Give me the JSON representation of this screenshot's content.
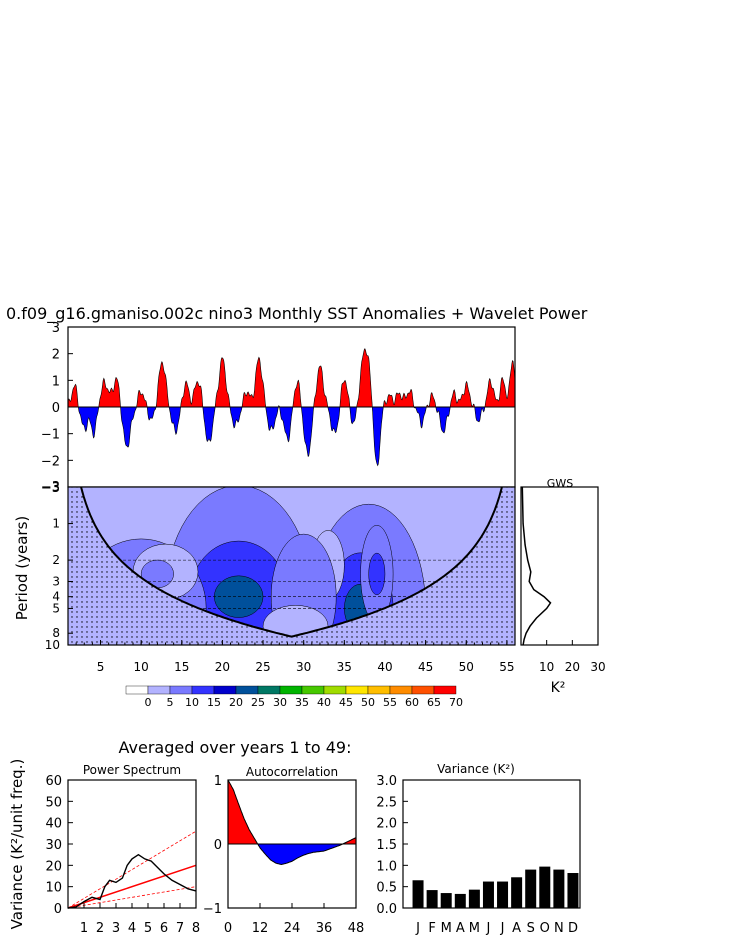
{
  "title": "0.f09_g16.gmaniso.002c nino3 Monthly SST Anomalies + Wavelet Power",
  "colors": {
    "positive": "#ff0000",
    "negative": "#0000ff",
    "coi_fill": "#8f8fe8",
    "wavelet_bg": "#b3b3ff",
    "bar": "#000000"
  },
  "chart_data": [
    {
      "id": "anomaly",
      "type": "area",
      "x_range": [
        1,
        56
      ],
      "ylim": [
        -3,
        3
      ],
      "yticks": [
        "3",
        "2",
        "1",
        "0",
        "−1",
        "−2",
        "−3"
      ],
      "peaks": [
        {
          "x": 1.8,
          "y": 0.8,
          "w": 0.5
        },
        {
          "x": 3.0,
          "y": -0.8,
          "w": 0.6
        },
        {
          "x": 4.2,
          "y": -1.0,
          "w": 0.5
        },
        {
          "x": 5.5,
          "y": 0.9,
          "w": 0.7
        },
        {
          "x": 7.0,
          "y": 1.1,
          "w": 0.6
        },
        {
          "x": 8.2,
          "y": -1.5,
          "w": 0.7
        },
        {
          "x": 10.0,
          "y": 0.6,
          "w": 0.5
        },
        {
          "x": 11.3,
          "y": -0.5,
          "w": 0.5
        },
        {
          "x": 12.6,
          "y": 1.7,
          "w": 0.6
        },
        {
          "x": 14.2,
          "y": -0.9,
          "w": 0.6
        },
        {
          "x": 15.5,
          "y": 0.9,
          "w": 0.5
        },
        {
          "x": 17.0,
          "y": 1.0,
          "w": 0.6
        },
        {
          "x": 18.3,
          "y": -1.4,
          "w": 0.6
        },
        {
          "x": 20.0,
          "y": 1.8,
          "w": 0.6
        },
        {
          "x": 21.6,
          "y": -0.7,
          "w": 0.6
        },
        {
          "x": 23.0,
          "y": 0.6,
          "w": 0.5
        },
        {
          "x": 24.5,
          "y": 1.8,
          "w": 0.6
        },
        {
          "x": 26.0,
          "y": -0.9,
          "w": 0.6
        },
        {
          "x": 28.0,
          "y": -1.2,
          "w": 0.6
        },
        {
          "x": 29.2,
          "y": 1.0,
          "w": 0.5
        },
        {
          "x": 30.5,
          "y": -1.8,
          "w": 0.6
        },
        {
          "x": 32.0,
          "y": 1.5,
          "w": 0.6
        },
        {
          "x": 33.8,
          "y": -1.0,
          "w": 0.6
        },
        {
          "x": 35.0,
          "y": 1.1,
          "w": 0.5
        },
        {
          "x": 36.2,
          "y": -0.7,
          "w": 0.5
        },
        {
          "x": 37.6,
          "y": 2.2,
          "w": 0.8
        },
        {
          "x": 39.0,
          "y": -2.4,
          "w": 0.5
        },
        {
          "x": 40.5,
          "y": 0.4,
          "w": 0.6
        },
        {
          "x": 41.8,
          "y": 0.5,
          "w": 0.6
        },
        {
          "x": 43.0,
          "y": 0.6,
          "w": 0.5
        },
        {
          "x": 44.5,
          "y": -0.6,
          "w": 0.5
        },
        {
          "x": 45.8,
          "y": 0.4,
          "w": 0.5
        },
        {
          "x": 47.2,
          "y": -0.9,
          "w": 0.6
        },
        {
          "x": 48.5,
          "y": 0.5,
          "w": 0.5
        },
        {
          "x": 50.0,
          "y": 0.8,
          "w": 0.6
        },
        {
          "x": 51.5,
          "y": -0.5,
          "w": 0.5
        },
        {
          "x": 53.0,
          "y": 1.0,
          "w": 0.5
        },
        {
          "x": 54.5,
          "y": 1.0,
          "w": 0.5
        },
        {
          "x": 55.7,
          "y": 1.8,
          "w": 0.4
        }
      ]
    },
    {
      "id": "wavelet",
      "type": "heatmap",
      "x_range": [
        1,
        56
      ],
      "xticks": [
        "5",
        "10",
        "15",
        "20",
        "25",
        "30",
        "35",
        "40",
        "45",
        "50",
        "55"
      ],
      "ylabel": "Period (years)",
      "ytick_labels": [
        "1",
        "2",
        "3",
        "4",
        "5",
        "8",
        "10"
      ],
      "ytick_values": [
        1,
        2,
        3,
        4,
        5,
        8,
        10
      ],
      "period_range": [
        0.5,
        10
      ],
      "dashed_periods": [
        2,
        3,
        4,
        5
      ],
      "colorbar": {
        "labels": [
          "0",
          "5",
          "10",
          "15",
          "20",
          "25",
          "30",
          "35",
          "40",
          "45",
          "50",
          "55",
          "60",
          "65",
          "70"
        ],
        "colors": [
          "#ffffff",
          "#b3b3ff",
          "#7a7aff",
          "#3333ff",
          "#0000cc",
          "#00509b",
          "#007864",
          "#00b400",
          "#46c800",
          "#a0dc00",
          "#ffe600",
          "#ffbe00",
          "#ff8c00",
          "#ff5000",
          "#ff0000"
        ]
      },
      "blobs": [
        {
          "x": 22,
          "p": 4.0,
          "rx": 9,
          "ry": 0.32,
          "level": 2
        },
        {
          "x": 22,
          "p": 4.0,
          "rx": 6,
          "ry": 0.16,
          "level": 3
        },
        {
          "x": 22,
          "p": 4.0,
          "rx": 3,
          "ry": 0.06,
          "level": 5
        },
        {
          "x": 10,
          "p": 5.0,
          "rx": 8,
          "ry": 0.2,
          "level": 2
        },
        {
          "x": 10,
          "p": 5.0,
          "rx": 4,
          "ry": 0.07,
          "level": 3
        },
        {
          "x": 13,
          "p": 2.5,
          "rx": 4,
          "ry": 0.08,
          "level": 1
        },
        {
          "x": 12,
          "p": 2.6,
          "rx": 2,
          "ry": 0.04,
          "level": 2
        },
        {
          "x": 38,
          "p": 5.0,
          "rx": 7,
          "ry": 0.3,
          "level": 2
        },
        {
          "x": 37,
          "p": 5.0,
          "rx": 4,
          "ry": 0.16,
          "level": 3
        },
        {
          "x": 37,
          "p": 5.0,
          "rx": 2,
          "ry": 0.07,
          "level": 5
        },
        {
          "x": 39,
          "p": 2.6,
          "rx": 2,
          "ry": 0.14,
          "level": 2
        },
        {
          "x": 39,
          "p": 2.6,
          "rx": 1,
          "ry": 0.06,
          "level": 3
        },
        {
          "x": 33,
          "p": 2.2,
          "rx": 2,
          "ry": 0.1,
          "level": 1
        },
        {
          "x": 30,
          "p": 4.0,
          "rx": 4,
          "ry": 0.18,
          "level": 2
        },
        {
          "x": 29,
          "p": 7.0,
          "rx": 4,
          "ry": 0.06,
          "level": 1
        }
      ]
    },
    {
      "id": "gws",
      "type": "line",
      "title": "GWS",
      "xlabel": "K²",
      "xticks": [
        "10",
        "20",
        "30"
      ],
      "x_range": [
        0,
        30
      ],
      "period": [
        0.5,
        1,
        1.5,
        2,
        2.5,
        3,
        3.5,
        4,
        4.5,
        5,
        6,
        7,
        8,
        9,
        10
      ],
      "power": [
        0.5,
        0.8,
        1.6,
        2.6,
        3.8,
        3.2,
        5,
        9,
        11.5,
        10,
        6,
        3.5,
        2,
        1.2,
        0.8
      ]
    },
    {
      "id": "colorbar-block",
      "type": "table"
    }
  ],
  "bottom": {
    "subtitle": "Averaged over years 1 to 49:",
    "ylabel": "Variance (K²/unit freq.)",
    "power_spectrum": {
      "type": "line",
      "title": "Power Spectrum",
      "xticks": [
        "1",
        "2",
        "3",
        "4",
        "5",
        "6",
        "7",
        "8"
      ],
      "yticks": [
        "60",
        "50",
        "40",
        "30",
        "20",
        "10",
        "0"
      ],
      "x_range": [
        0,
        8
      ],
      "ylim": [
        0,
        60
      ],
      "freq": [
        0,
        0.5,
        1,
        1.5,
        2,
        2.3,
        2.6,
        3,
        3.4,
        3.7,
        4,
        4.4,
        4.8,
        5.2,
        5.6,
        6,
        6.5,
        7,
        7.5,
        8
      ],
      "power": [
        0,
        0.5,
        3,
        5,
        4,
        10,
        13,
        12,
        14,
        20,
        23,
        25,
        23,
        22,
        19,
        16,
        13,
        11,
        9,
        8
      ],
      "red_noise": [
        0,
        20
      ],
      "red_noise_upper": [
        0,
        36
      ],
      "red_noise_lower": [
        0,
        10
      ]
    },
    "autocorrelation": {
      "type": "area",
      "title": "Autocorrelation",
      "xticks": [
        "0",
        "12",
        "24",
        "36",
        "48"
      ],
      "yticks": [
        "1",
        "0",
        "−1"
      ],
      "x_range": [
        0,
        48
      ],
      "ylim": [
        -1,
        1
      ],
      "lag": [
        0,
        2,
        4,
        6,
        8,
        10,
        12,
        14,
        16,
        18,
        20,
        22,
        24,
        26,
        28,
        30,
        32,
        34,
        36,
        38,
        40,
        42,
        44,
        46,
        48
      ],
      "acf": [
        1,
        0.85,
        0.62,
        0.4,
        0.22,
        0.08,
        -0.06,
        -0.16,
        -0.25,
        -0.3,
        -0.32,
        -0.3,
        -0.27,
        -0.22,
        -0.18,
        -0.15,
        -0.13,
        -0.12,
        -0.11,
        -0.08,
        -0.05,
        -0.02,
        0.02,
        0.06,
        0.1
      ]
    },
    "variance": {
      "type": "bar",
      "title": "Variance (K²)",
      "categories": [
        "J",
        "F",
        "M",
        "A",
        "M",
        "J",
        "J",
        "A",
        "S",
        "O",
        "N",
        "D"
      ],
      "values": [
        0.65,
        0.42,
        0.35,
        0.33,
        0.43,
        0.62,
        0.62,
        0.72,
        0.9,
        0.97,
        0.9,
        0.82
      ],
      "yticks": [
        "3.0",
        "2.5",
        "2.0",
        "1.5",
        "1.0",
        "0.5",
        "0.0"
      ],
      "ylim": [
        0,
        3
      ]
    }
  }
}
